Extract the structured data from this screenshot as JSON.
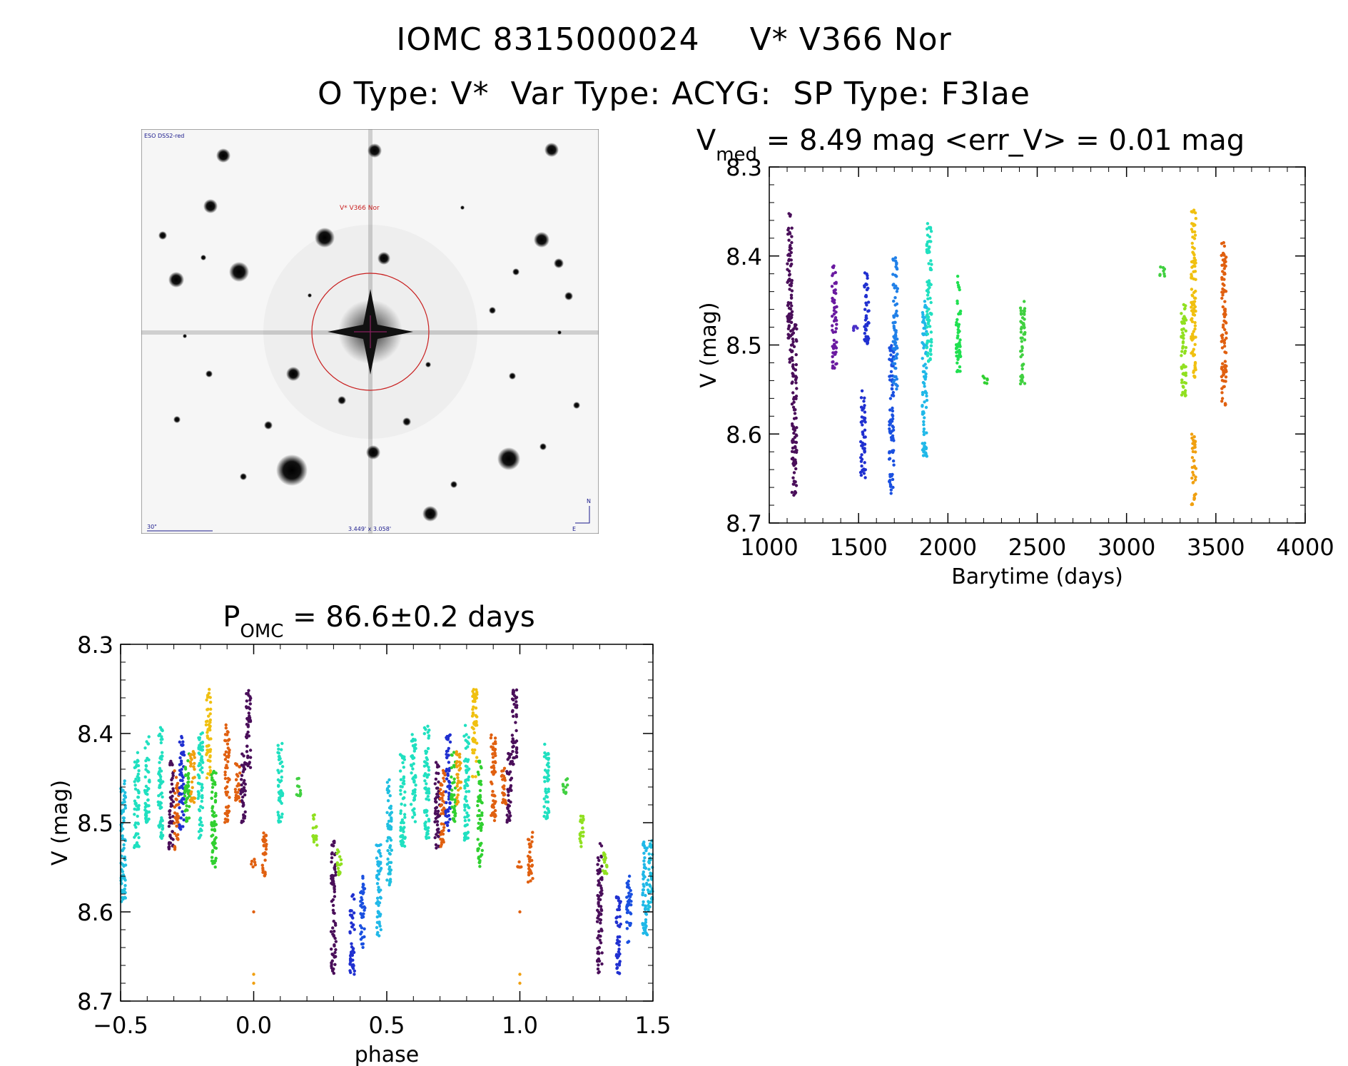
{
  "header": {
    "line1_left": "IOMC 8315000024",
    "line1_right": "V* V366 Nor",
    "line2_a": "O Type: V*",
    "line2_b": "Var Type: ACYG:",
    "line2_c": "SP Type: F3Iae"
  },
  "finder": {
    "survey_label": "ESO DSS2-red",
    "target_label": "V* V366 Nor",
    "scale_label": "30\"",
    "fov_label": "3.449' x 3.058'",
    "north_label": "N",
    "east_label": "E"
  },
  "colors": {
    "axis": "#000000",
    "background": "#ffffff",
    "target_circle": "#c81e1e",
    "finder_marks": "#1a1a8c"
  },
  "chart_data": [
    {
      "type": "scatter",
      "name": "light-curve",
      "title_main": "V",
      "title_sub": "med",
      "title_rest": " = 8.49 mag <err_V> = 0.01 mag",
      "xlabel": "Barytime (days)",
      "ylabel": "V (mag)",
      "xlim": [
        1000,
        4000
      ],
      "ylim": [
        8.7,
        8.3
      ],
      "y_inverted": true,
      "xticks": [
        1000,
        1500,
        2000,
        2500,
        3000,
        3500,
        4000
      ],
      "yticks": [
        8.3,
        8.4,
        8.5,
        8.6,
        8.7
      ],
      "xtick_labels": [
        "1000",
        "1500",
        "2000",
        "2500",
        "3000",
        "3500",
        "4000"
      ],
      "ytick_labels": [
        "8.3",
        "8.4",
        "8.5",
        "8.6",
        "8.7"
      ],
      "groups": [
        {
          "x": 1115,
          "ymin": 8.35,
          "ymax": 8.52,
          "color": "#4a0f5a"
        },
        {
          "x": 1140,
          "ymin": 8.47,
          "ymax": 8.67,
          "color": "#4a0f5a"
        },
        {
          "x": 1365,
          "ymin": 8.41,
          "ymax": 8.53,
          "color": "#6a1aa0"
        },
        {
          "x": 1485,
          "ymin": 8.475,
          "ymax": 8.485,
          "color": "#4a30c8"
        },
        {
          "x": 1525,
          "ymin": 8.55,
          "ymax": 8.65,
          "color": "#2030d0"
        },
        {
          "x": 1545,
          "ymin": 8.41,
          "ymax": 8.5,
          "color": "#2030d0"
        },
        {
          "x": 1685,
          "ymin": 8.5,
          "ymax": 8.67,
          "color": "#1a50e0"
        },
        {
          "x": 1705,
          "ymin": 8.4,
          "ymax": 8.55,
          "color": "#2080e8"
        },
        {
          "x": 1870,
          "ymin": 8.45,
          "ymax": 8.63,
          "color": "#20b8e8"
        },
        {
          "x": 1895,
          "ymin": 8.36,
          "ymax": 8.52,
          "color": "#20e0c0"
        },
        {
          "x": 2060,
          "ymin": 8.42,
          "ymax": 8.53,
          "color": "#20e050"
        },
        {
          "x": 2210,
          "ymin": 8.535,
          "ymax": 8.545,
          "color": "#30d030"
        },
        {
          "x": 2420,
          "ymin": 8.445,
          "ymax": 8.545,
          "color": "#40d040"
        },
        {
          "x": 3200,
          "ymin": 8.41,
          "ymax": 8.425,
          "color": "#40d040"
        },
        {
          "x": 3320,
          "ymin": 8.45,
          "ymax": 8.56,
          "color": "#90e020"
        },
        {
          "x": 3375,
          "ymin": 8.345,
          "ymax": 8.54,
          "color": "#f0c010"
        },
        {
          "x": 3375,
          "ymin": 8.6,
          "ymax": 8.68,
          "color": "#f0a010"
        },
        {
          "x": 3545,
          "ymin": 8.385,
          "ymax": 8.57,
          "color": "#e06010"
        }
      ]
    },
    {
      "type": "scatter",
      "name": "phase-curve",
      "title_main": "P",
      "title_sub": "OMC",
      "title_rest": " = 86.6±0.2 days",
      "xlabel": "phase",
      "ylabel": "V (mag)",
      "xlim": [
        -0.5,
        1.5
      ],
      "ylim": [
        8.7,
        8.3
      ],
      "y_inverted": true,
      "xticks": [
        -0.5,
        0.0,
        0.5,
        1.0,
        1.5
      ],
      "yticks": [
        8.3,
        8.4,
        8.5,
        8.6,
        8.7
      ],
      "xtick_labels": [
        "−0.5",
        "0.0",
        "0.5",
        "1.0",
        "1.5"
      ],
      "ytick_labels": [
        "8.3",
        "8.4",
        "8.5",
        "8.6",
        "8.7"
      ],
      "groups": [
        {
          "x": -0.49,
          "ymin": 8.45,
          "ymax": 8.59,
          "color": "#20c0e0"
        },
        {
          "x": -0.44,
          "ymin": 8.42,
          "ymax": 8.53,
          "color": "#20e0c0"
        },
        {
          "x": -0.4,
          "ymin": 8.4,
          "ymax": 8.5,
          "color": "#20e0c0"
        },
        {
          "x": -0.35,
          "ymin": 8.39,
          "ymax": 8.52,
          "color": "#20e0c0"
        },
        {
          "x": -0.31,
          "ymin": 8.43,
          "ymax": 8.53,
          "color": "#4a0f5a"
        },
        {
          "x": -0.29,
          "ymin": 8.44,
          "ymax": 8.53,
          "color": "#e06010"
        },
        {
          "x": -0.27,
          "ymin": 8.4,
          "ymax": 8.51,
          "color": "#2030d0"
        },
        {
          "x": -0.25,
          "ymin": 8.42,
          "ymax": 8.5,
          "color": "#30d030"
        },
        {
          "x": -0.23,
          "ymin": 8.42,
          "ymax": 8.48,
          "color": "#f0a010"
        },
        {
          "x": -0.2,
          "ymin": 8.39,
          "ymax": 8.52,
          "color": "#20e0c0"
        },
        {
          "x": -0.17,
          "ymin": 8.35,
          "ymax": 8.45,
          "color": "#f0c010"
        },
        {
          "x": -0.15,
          "ymin": 8.43,
          "ymax": 8.55,
          "color": "#30d030"
        },
        {
          "x": -0.1,
          "ymin": 8.39,
          "ymax": 8.5,
          "color": "#e06010"
        },
        {
          "x": -0.06,
          "ymin": 8.43,
          "ymax": 8.48,
          "color": "#e06010"
        },
        {
          "x": -0.04,
          "ymin": 8.42,
          "ymax": 8.5,
          "color": "#4a0f5a"
        },
        {
          "x": -0.02,
          "ymin": 8.35,
          "ymax": 8.44,
          "color": "#4a0f5a"
        },
        {
          "x": 0.0,
          "ymin": 8.54,
          "ymax": 8.55,
          "color": "#e06010"
        },
        {
          "x": 0.04,
          "ymin": 8.51,
          "ymax": 8.57,
          "color": "#e06010"
        },
        {
          "x": 0.1,
          "ymin": 8.41,
          "ymax": 8.5,
          "color": "#20e0c0"
        },
        {
          "x": 0.17,
          "ymin": 8.45,
          "ymax": 8.47,
          "color": "#40d040"
        },
        {
          "x": 0.23,
          "ymin": 8.49,
          "ymax": 8.53,
          "color": "#90e020"
        },
        {
          "x": 0.3,
          "ymin": 8.52,
          "ymax": 8.67,
          "color": "#4a0f5a"
        },
        {
          "x": 0.32,
          "ymin": 8.53,
          "ymax": 8.56,
          "color": "#90e020"
        },
        {
          "x": 0.37,
          "ymin": 8.58,
          "ymax": 8.67,
          "color": "#2030d0"
        },
        {
          "x": 0.41,
          "ymin": 8.56,
          "ymax": 8.64,
          "color": "#1a50e0"
        },
        {
          "x": 0.47,
          "ymin": 8.52,
          "ymax": 8.63,
          "color": "#20b8e8"
        },
        {
          "x": 0.51,
          "ymin": 8.45,
          "ymax": 8.57,
          "color": "#20c0e0"
        },
        {
          "x": 0.56,
          "ymin": 8.42,
          "ymax": 8.53,
          "color": "#20e0c0"
        },
        {
          "x": 0.6,
          "ymin": 8.4,
          "ymax": 8.5,
          "color": "#20e0c0"
        },
        {
          "x": 0.65,
          "ymin": 8.39,
          "ymax": 8.52,
          "color": "#20e0c0"
        },
        {
          "x": 0.69,
          "ymin": 8.43,
          "ymax": 8.53,
          "color": "#4a0f5a"
        },
        {
          "x": 0.71,
          "ymin": 8.44,
          "ymax": 8.53,
          "color": "#e06010"
        },
        {
          "x": 0.73,
          "ymin": 8.4,
          "ymax": 8.51,
          "color": "#2030d0"
        },
        {
          "x": 0.75,
          "ymin": 8.42,
          "ymax": 8.5,
          "color": "#30d030"
        },
        {
          "x": 0.77,
          "ymin": 8.42,
          "ymax": 8.48,
          "color": "#f0a010"
        },
        {
          "x": 0.8,
          "ymin": 8.39,
          "ymax": 8.52,
          "color": "#20e0c0"
        },
        {
          "x": 0.83,
          "ymin": 8.35,
          "ymax": 8.45,
          "color": "#f0c010"
        },
        {
          "x": 0.85,
          "ymin": 8.43,
          "ymax": 8.55,
          "color": "#30d030"
        },
        {
          "x": 0.9,
          "ymin": 8.39,
          "ymax": 8.5,
          "color": "#e06010"
        },
        {
          "x": 0.94,
          "ymin": 8.43,
          "ymax": 8.48,
          "color": "#e06010"
        },
        {
          "x": 0.96,
          "ymin": 8.42,
          "ymax": 8.5,
          "color": "#4a0f5a"
        },
        {
          "x": 0.98,
          "ymin": 8.35,
          "ymax": 8.44,
          "color": "#4a0f5a"
        },
        {
          "x": 1.0,
          "ymin": 8.54,
          "ymax": 8.55,
          "color": "#e06010"
        },
        {
          "x": 1.04,
          "ymin": 8.51,
          "ymax": 8.57,
          "color": "#e06010"
        },
        {
          "x": 1.1,
          "ymin": 8.41,
          "ymax": 8.5,
          "color": "#20e0c0"
        },
        {
          "x": 1.17,
          "ymin": 8.45,
          "ymax": 8.47,
          "color": "#40d040"
        },
        {
          "x": 1.23,
          "ymin": 8.49,
          "ymax": 8.53,
          "color": "#90e020"
        },
        {
          "x": 1.3,
          "ymin": 8.52,
          "ymax": 8.67,
          "color": "#4a0f5a"
        },
        {
          "x": 1.32,
          "ymin": 8.53,
          "ymax": 8.56,
          "color": "#90e020"
        },
        {
          "x": 1.37,
          "ymin": 8.58,
          "ymax": 8.67,
          "color": "#2030d0"
        },
        {
          "x": 1.41,
          "ymin": 8.56,
          "ymax": 8.64,
          "color": "#1a50e0"
        },
        {
          "x": 1.47,
          "ymin": 8.52,
          "ymax": 8.63,
          "color": "#20b8e8"
        },
        {
          "x": 1.49,
          "ymin": 8.52,
          "ymax": 8.6,
          "color": "#20c0e0"
        }
      ],
      "singles": [
        {
          "x": 0.0,
          "y": 8.6,
          "color": "#e06010"
        },
        {
          "x": 0.0,
          "y": 8.67,
          "color": "#f0a010"
        },
        {
          "x": 0.0,
          "y": 8.68,
          "color": "#f0a010"
        },
        {
          "x": 1.0,
          "y": 8.6,
          "color": "#e06010"
        },
        {
          "x": 1.0,
          "y": 8.67,
          "color": "#f0a010"
        },
        {
          "x": 1.0,
          "y": 8.68,
          "color": "#f0a010"
        }
      ]
    }
  ]
}
